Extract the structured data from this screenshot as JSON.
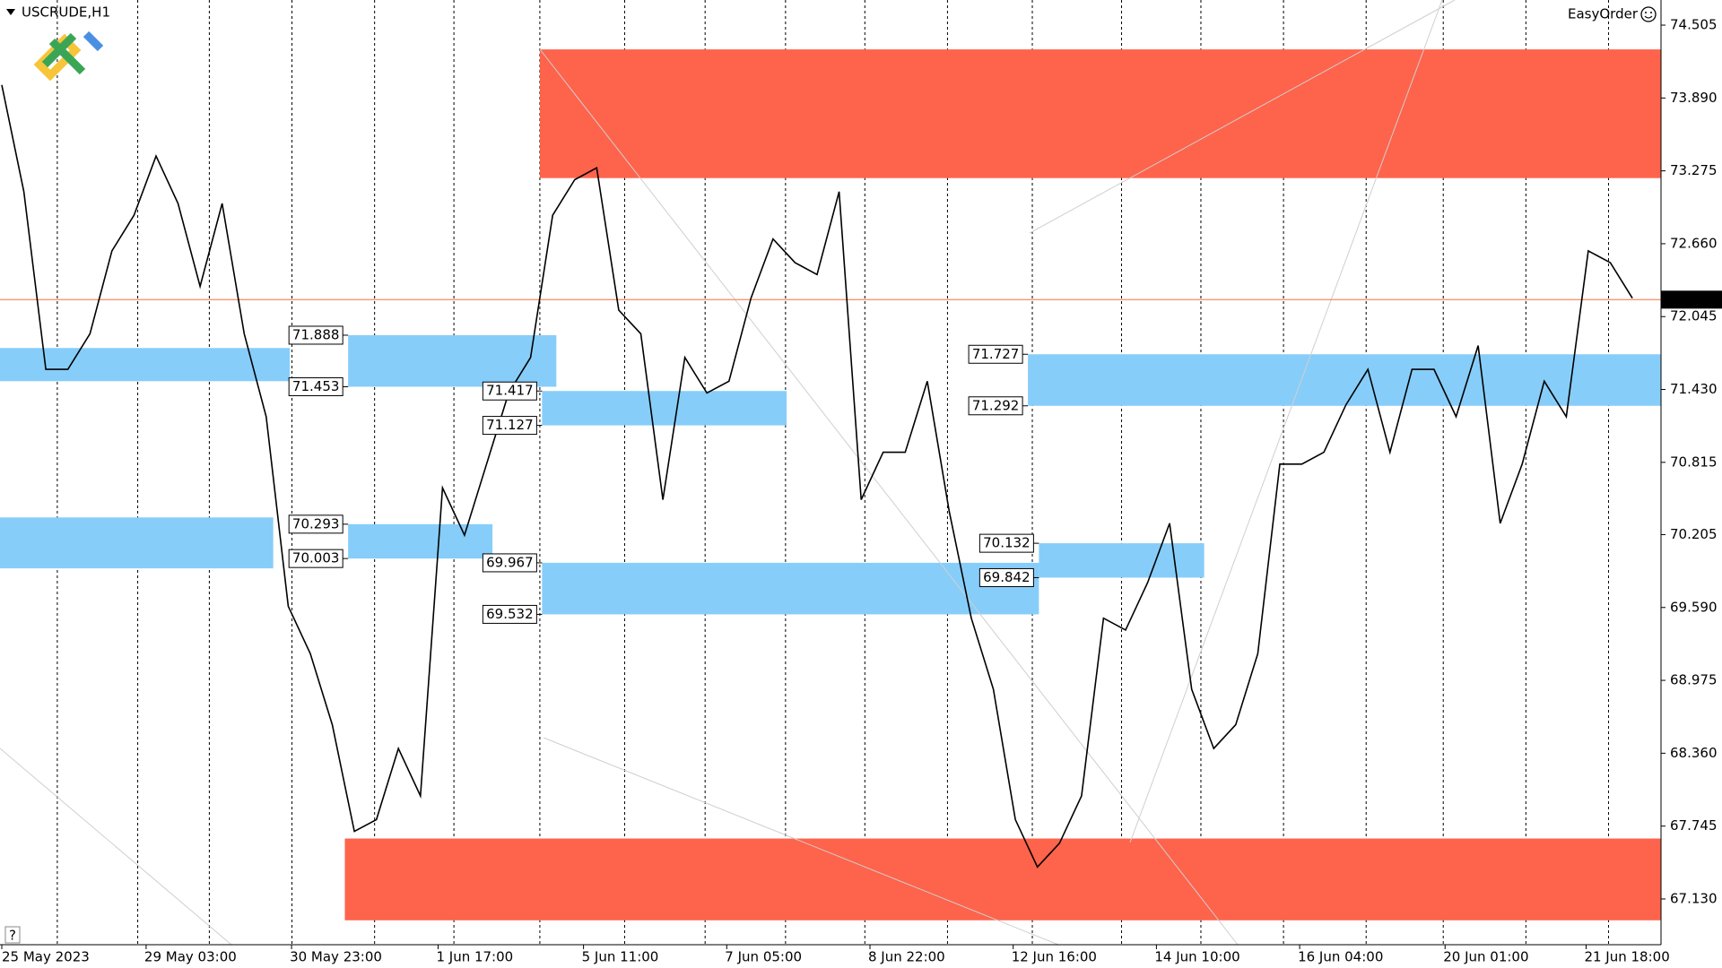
{
  "chart_data": {
    "type": "line",
    "title": "USCRUDE,H1",
    "button_label": "EasyOrder",
    "help_label": "?",
    "series": [
      {
        "name": "USCRUDE",
        "color": "#000000",
        "values": [
          74.0,
          73.1,
          71.6,
          71.6,
          71.9,
          72.6,
          72.9,
          73.4,
          73.0,
          72.3,
          73.0,
          71.9,
          71.2,
          69.6,
          69.2,
          68.6,
          67.7,
          67.8,
          68.4,
          68.0,
          70.6,
          70.2,
          70.8,
          71.4,
          71.7,
          72.9,
          73.2,
          73.3,
          72.1,
          71.9,
          70.5,
          71.7,
          71.4,
          71.5,
          72.2,
          72.7,
          72.5,
          72.4,
          73.1,
          70.5,
          70.9,
          70.9,
          71.5,
          70.4,
          69.5,
          68.9,
          67.8,
          67.4,
          67.6,
          68.0,
          69.5,
          69.4,
          69.8,
          70.3,
          68.9,
          68.4,
          68.6,
          69.2,
          70.8,
          70.8,
          70.9,
          71.3,
          71.6,
          70.9,
          71.6,
          71.6,
          71.2,
          71.8,
          70.3,
          70.8,
          71.5,
          71.2,
          72.6,
          72.5,
          72.2
        ]
      }
    ],
    "last_price": 72.188,
    "last_price_color": "#ff7f50",
    "ylim": [
      66.744,
      74.717
    ],
    "yticks": [
      74.505,
      {
        "value": 73.89,
        "label": "73.890"
      },
      73.275,
      {
        "value": 72.66,
        "label": "72.660"
      },
      72.045,
      {
        "value": 71.43,
        "label": "71.430"
      },
      70.815,
      70.205,
      {
        "value": 69.59,
        "label": "69.590"
      },
      68.975,
      {
        "value": 68.36,
        "label": "68.360"
      },
      67.745,
      {
        "value": 67.13,
        "label": "67.130"
      }
    ],
    "xlim": [
      0,
      75.3
    ],
    "xticks": [
      {
        "value": 0,
        "label": "25 May 2023"
      },
      {
        "value": 6.55,
        "label": "29 May 03:00"
      },
      {
        "value": 13.15,
        "label": "30 May 23:00"
      },
      {
        "value": 19.8,
        "label": "1 Jun 17:00"
      },
      {
        "value": 26.4,
        "label": "5 Jun 11:00"
      },
      {
        "value": 32.9,
        "label": "7 Jun 05:00"
      },
      {
        "value": 39.4,
        "label": "8 Jun 22:00"
      },
      {
        "value": 45.9,
        "label": "12 Jun 16:00"
      },
      {
        "value": 52.4,
        "label": "14 Jun 10:00"
      },
      {
        "value": 58.9,
        "label": "16 Jun 04:00"
      },
      {
        "value": 65.5,
        "label": "20 Jun 01:00"
      },
      {
        "value": 71.9,
        "label": "21 Jun 18:00"
      }
    ],
    "zones": [
      {
        "high": 74.3,
        "low": 73.214,
        "color": "#fe634b",
        "labels": false
      },
      {
        "high": 67.64,
        "low": 66.95,
        "color": "#fe634b",
        "labels": false
      },
      {
        "high": 71.78,
        "low": 71.5,
        "color": "#87cdf9",
        "labels": false
      },
      {
        "high": 71.888,
        "low": 71.453,
        "color": "#87cdf9",
        "labels": true
      },
      {
        "high": 71.417,
        "low": 71.127,
        "color": "#87cdf9",
        "labels": true
      },
      {
        "high": 70.35,
        "low": 69.92,
        "color": "#87cdf9",
        "labels": false
      },
      {
        "high": 70.293,
        "low": 70.003,
        "color": "#87cdf9",
        "labels": true
      },
      {
        "high": 69.967,
        "low": 69.532,
        "color": "#87cdf9",
        "labels": true
      },
      {
        "high": 71.727,
        "low": 71.292,
        "color": "#87cdf9",
        "labels": true
      },
      {
        "high": 70.132,
        "low": 69.842,
        "color": "#87cdf9",
        "labels": true
      }
    ],
    "grid": true
  }
}
